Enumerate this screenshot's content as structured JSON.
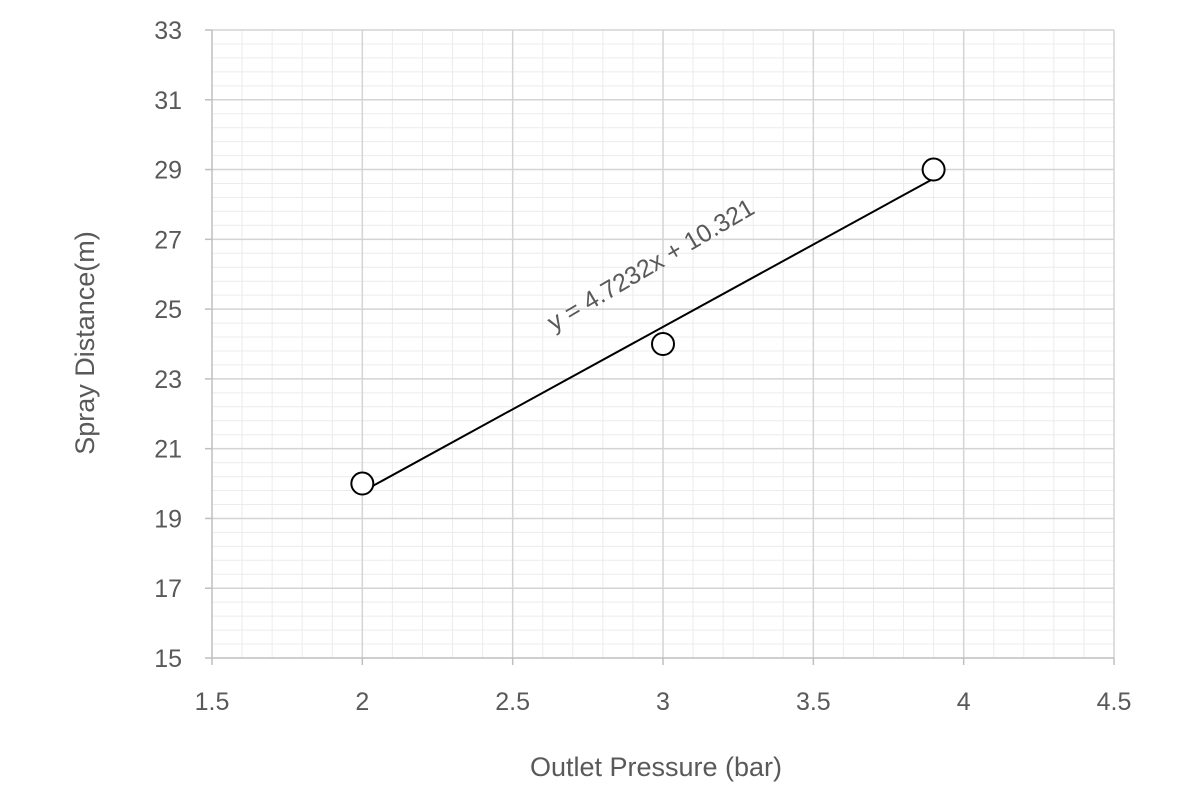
{
  "chart_data": {
    "type": "scatter",
    "xlabel": "Outlet Pressure (bar)",
    "ylabel": "Spray Distance(m)",
    "xlim": [
      1.5,
      4.5
    ],
    "ylim": [
      15,
      33
    ],
    "x_major_ticks": [
      1.5,
      2,
      2.5,
      3,
      3.5,
      4,
      4.5
    ],
    "x_tick_labels": [
      "1.5",
      "2",
      "2.5",
      "3",
      "3.5",
      "4",
      "4.5"
    ],
    "y_major_ticks": [
      15,
      17,
      19,
      21,
      23,
      25,
      27,
      29,
      31,
      33
    ],
    "y_tick_labels": [
      "15",
      "17",
      "19",
      "21",
      "23",
      "25",
      "27",
      "29",
      "31",
      "33"
    ],
    "x_minor_step": 0.1,
    "y_minor_step": 0.4,
    "grid": true,
    "points": [
      {
        "x": 2.0,
        "y": 20.0
      },
      {
        "x": 3.0,
        "y": 24.0
      },
      {
        "x": 3.9,
        "y": 29.0
      }
    ],
    "trendline": {
      "type": "linear",
      "slope": 4.7232,
      "intercept": 10.321,
      "x_range": [
        2.0,
        3.9
      ],
      "equation_label": "y = 4.7232x + 10.321"
    },
    "colors": {
      "major_grid": "#d4d4d4",
      "minor_grid": "#ececec",
      "axis": "#bfbfbf",
      "marker": "#000000",
      "trendline": "#000000",
      "text": "#595959"
    }
  }
}
